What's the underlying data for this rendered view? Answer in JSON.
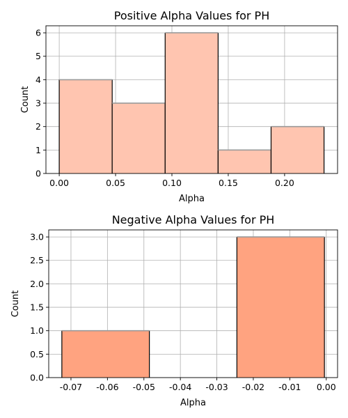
{
  "chart_data": [
    {
      "type": "bar",
      "title": "Positive Alpha Values for PH",
      "xlabel": "Alpha",
      "ylabel": "Count",
      "bin_edges": [
        0.0,
        0.047,
        0.094,
        0.141,
        0.188,
        0.235
      ],
      "values": [
        4,
        3,
        6,
        1,
        2
      ],
      "xlim": [
        -0.0118,
        0.247
      ],
      "ylim": [
        0,
        6.3
      ],
      "xticks": [
        0.0,
        0.05,
        0.1,
        0.15,
        0.2
      ],
      "xtick_labels": [
        "0.00",
        "0.05",
        "0.10",
        "0.15",
        "0.20"
      ],
      "yticks": [
        0,
        1,
        2,
        3,
        4,
        5,
        6
      ],
      "ytick_labels": [
        "0",
        "1",
        "2",
        "3",
        "4",
        "5",
        "6"
      ],
      "grid": true,
      "bar_color": "#ffc5b0"
    },
    {
      "type": "bar",
      "title": "Negative Alpha Values for PH",
      "xlabel": "Alpha",
      "ylabel": "Count",
      "bin_edges": [
        -0.0725,
        -0.0485,
        -0.0245,
        -0.0005
      ],
      "values": [
        1,
        0,
        3
      ],
      "xlim": [
        -0.0761,
        0.0031
      ],
      "ylim": [
        0,
        3.15
      ],
      "xticks": [
        -0.07,
        -0.06,
        -0.05,
        -0.04,
        -0.03,
        -0.02,
        -0.01,
        0.0
      ],
      "xtick_labels": [
        "-0.07",
        "-0.06",
        "-0.05",
        "-0.04",
        "-0.03",
        "-0.02",
        "-0.01",
        "0.00"
      ],
      "yticks": [
        0,
        0.5,
        1.0,
        1.5,
        2.0,
        2.5,
        3.0
      ],
      "ytick_labels": [
        "0.0",
        "0.5",
        "1.0",
        "1.5",
        "2.0",
        "2.5",
        "3.0"
      ],
      "grid": true,
      "bar_color": "#ffa380"
    }
  ]
}
